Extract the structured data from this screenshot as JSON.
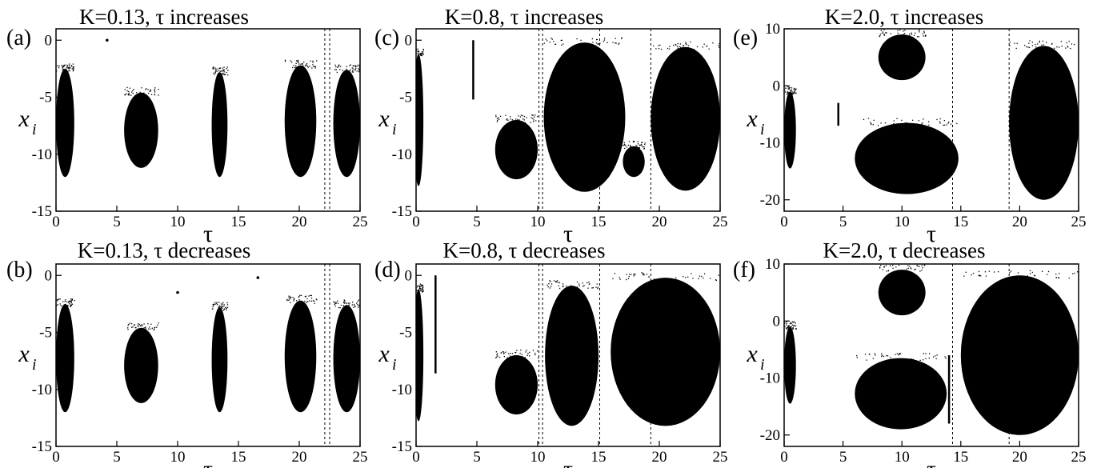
{
  "figure": {
    "xlabel": "τ",
    "ylabel": "x",
    "ylabel_subscript": "i"
  },
  "chart_data": [
    {
      "type": "scatter",
      "panel": "(a)",
      "title": "K=0.13, τ increases",
      "xlabel": "τ",
      "ylabel": "x_i",
      "xlim": [
        0,
        25
      ],
      "ylim": [
        -15,
        1
      ],
      "xticks": [
        0,
        5,
        10,
        15,
        20,
        25
      ],
      "yticks": [
        0,
        -5,
        -10,
        -15
      ],
      "vlines": [
        22.1,
        22.5
      ],
      "lobes": [
        {
          "x": [
            0.0,
            1.5
          ],
          "ytop": -2.5,
          "ybot": -12.0
        },
        {
          "x": [
            5.6,
            8.4
          ],
          "ytop": -4.6,
          "ybot": -11.2
        },
        {
          "x": [
            12.8,
            14.1
          ],
          "ytop": -2.8,
          "ybot": -12.0
        },
        {
          "x": [
            18.8,
            21.4
          ],
          "ytop": -2.2,
          "ybot": -12.0
        },
        {
          "x": [
            22.8,
            25.0
          ],
          "ytop": -2.6,
          "ybot": -12.0
        }
      ],
      "isolated_points": [
        {
          "x": 4.2,
          "y": 0.0
        }
      ]
    },
    {
      "type": "scatter",
      "panel": "(b)",
      "title": "K=0.13, τ decreases",
      "xlabel": "τ",
      "ylabel": "x_i",
      "xlim": [
        0,
        25
      ],
      "ylim": [
        -15,
        1
      ],
      "xticks": [
        0,
        5,
        10,
        15,
        20,
        25
      ],
      "yticks": [
        0,
        -5,
        -10,
        -15
      ],
      "vlines": [
        22.1,
        22.5
      ],
      "lobes": [
        {
          "x": [
            0.0,
            1.5
          ],
          "ytop": -2.5,
          "ybot": -12.0
        },
        {
          "x": [
            5.6,
            8.4
          ],
          "ytop": -4.6,
          "ybot": -11.2
        },
        {
          "x": [
            12.8,
            14.1
          ],
          "ytop": -2.8,
          "ybot": -12.0
        },
        {
          "x": [
            18.8,
            21.4
          ],
          "ytop": -2.2,
          "ybot": -12.0
        },
        {
          "x": [
            22.8,
            25.0
          ],
          "ytop": -2.6,
          "ybot": -12.0
        }
      ],
      "isolated_points": [
        {
          "x": 10.0,
          "y": -1.5
        },
        {
          "x": 16.6,
          "y": -0.2
        }
      ]
    },
    {
      "type": "scatter",
      "panel": "(c)",
      "title": "K=0.8, τ increases",
      "xlabel": "τ",
      "ylabel": "x_i",
      "xlim": [
        0,
        25
      ],
      "ylim": [
        -15,
        1
      ],
      "xticks": [
        0,
        5,
        10,
        15,
        20,
        25
      ],
      "yticks": [
        0,
        -5,
        -10,
        -15
      ],
      "vlines": [
        10.1,
        10.4,
        15.1,
        19.3
      ],
      "lobes": [
        {
          "x": [
            -0.2,
            0.6
          ],
          "ytop": -1.2,
          "ybot": -12.8
        },
        {
          "x": [
            6.5,
            10.0
          ],
          "ytop": -7.0,
          "ybot": -12.2
        },
        {
          "x": [
            10.5,
            17.2
          ],
          "ytop": -0.2,
          "ybot": -13.3
        },
        {
          "x": [
            17.0,
            18.8
          ],
          "ytop": -9.3,
          "ybot": -12.0
        },
        {
          "x": [
            19.3,
            25.0
          ],
          "ytop": -0.6,
          "ybot": -13.2
        }
      ],
      "vertical_segments": [
        {
          "x": 4.7,
          "y": [
            0.0,
            -5.2
          ]
        }
      ]
    },
    {
      "type": "scatter",
      "panel": "(d)",
      "title": "K=0.8, τ decreases",
      "xlabel": "τ",
      "ylabel": "x_i",
      "xlim": [
        0,
        25
      ],
      "ylim": [
        -15,
        1
      ],
      "xticks": [
        0,
        5,
        10,
        15,
        20,
        25
      ],
      "yticks": [
        0,
        -5,
        -10,
        -15
      ],
      "vlines": [
        10.1,
        10.4,
        15.1,
        19.3
      ],
      "lobes": [
        {
          "x": [
            -0.2,
            0.6
          ],
          "ytop": -1.2,
          "ybot": -12.8
        },
        {
          "x": [
            6.5,
            10.0
          ],
          "ytop": -7.0,
          "ybot": -12.2
        },
        {
          "x": [
            10.6,
            15.0
          ],
          "ytop": -0.9,
          "ybot": -13.2
        },
        {
          "x": [
            16.0,
            25.0
          ],
          "ytop": -0.2,
          "ybot": -13.2
        }
      ],
      "vertical_segments": [
        {
          "x": 1.6,
          "y": [
            0.0,
            -8.6
          ]
        }
      ]
    },
    {
      "type": "scatter",
      "panel": "(e)",
      "title": "K=2.0, τ increases",
      "xlabel": "τ",
      "ylabel": "x_i",
      "xlim": [
        0,
        25
      ],
      "ylim": [
        -22,
        10
      ],
      "xticks": [
        0,
        5,
        10,
        15,
        20,
        25
      ],
      "yticks": [
        10,
        0,
        -10,
        -20
      ],
      "vlines": [
        14.3,
        19.1
      ],
      "lobes": [
        {
          "x": [
            0.0,
            1.0
          ],
          "ytop": -1.0,
          "ybot": -14.5
        },
        {
          "x": [
            6.0,
            14.8
          ],
          "ytop": -6.5,
          "ybot": -19.0
        },
        {
          "x": [
            8.0,
            12.0
          ],
          "ytop": 9.0,
          "ybot": 1.0
        },
        {
          "x": [
            19.1,
            25.0
          ],
          "ytop": 7.0,
          "ybot": -20.0
        }
      ],
      "vertical_segments": [
        {
          "x": 4.6,
          "y": [
            -3.0,
            -7.0
          ]
        }
      ]
    },
    {
      "type": "scatter",
      "panel": "(f)",
      "title": "K=2.0, τ decreases",
      "xlabel": "τ",
      "ylabel": "x_i",
      "xlim": [
        0,
        25
      ],
      "ylim": [
        -22,
        10
      ],
      "xticks": [
        0,
        5,
        10,
        15,
        20,
        25
      ],
      "yticks": [
        10,
        0,
        -10,
        -20
      ],
      "vlines": [
        14.3,
        19.1
      ],
      "lobes": [
        {
          "x": [
            0.0,
            1.0
          ],
          "ytop": -1.0,
          "ybot": -14.5
        },
        {
          "x": [
            6.0,
            13.8
          ],
          "ytop": -6.5,
          "ybot": -19.0
        },
        {
          "x": [
            8.0,
            12.0
          ],
          "ytop": 9.0,
          "ybot": 1.0
        },
        {
          "x": [
            15.0,
            25.0
          ],
          "ytop": 8.0,
          "ybot": -20.0
        }
      ],
      "vertical_segments": [
        {
          "x": 14.0,
          "y": [
            -6.0,
            -18.0
          ]
        }
      ]
    }
  ]
}
